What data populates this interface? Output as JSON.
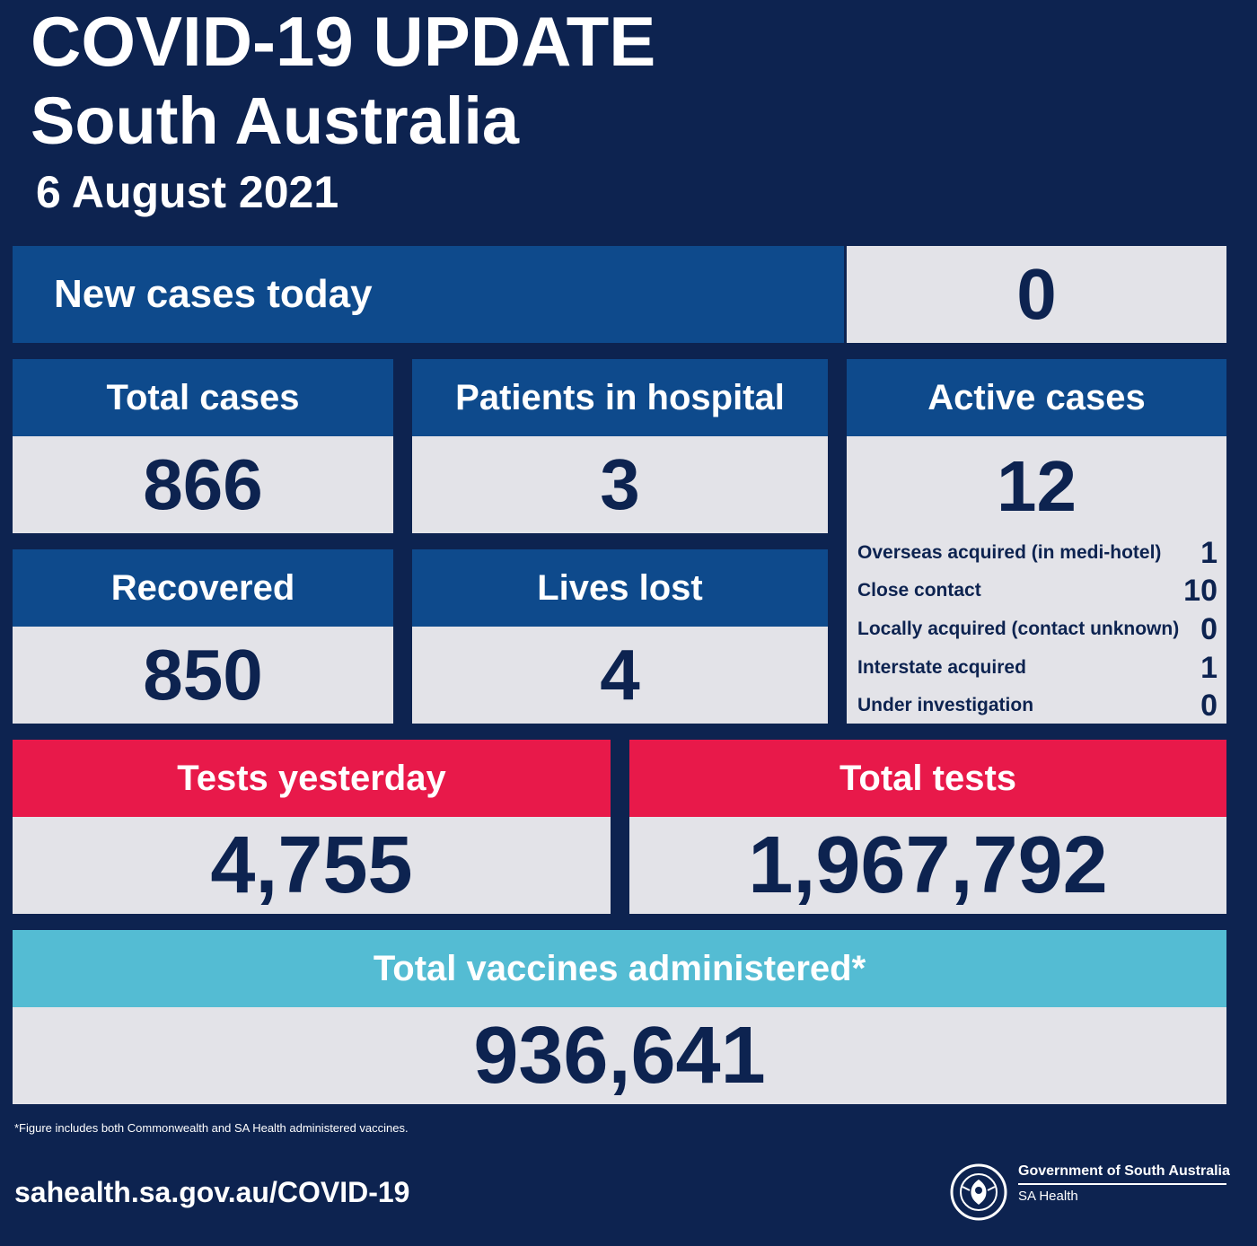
{
  "header": {
    "title": "COVID-19 UPDATE",
    "subtitle": "South Australia",
    "date": "6 August 2021"
  },
  "new_cases": {
    "label": "New cases today",
    "value": "0"
  },
  "total_cases": {
    "label": "Total cases",
    "value": "866"
  },
  "hospital": {
    "label": "Patients in hospital",
    "value": "3"
  },
  "active": {
    "label": "Active cases",
    "value": "12",
    "breakdown": [
      {
        "label": "Overseas acquired (in medi-hotel)",
        "value": "1"
      },
      {
        "label": "Close contact",
        "value": "10"
      },
      {
        "label": "Locally acquired (contact unknown)",
        "value": "0"
      },
      {
        "label": "Interstate acquired",
        "value": "1"
      },
      {
        "label": "Under investigation",
        "value": "0"
      }
    ]
  },
  "recovered": {
    "label": "Recovered",
    "value": "850"
  },
  "lives_lost": {
    "label": "Lives lost",
    "value": "4"
  },
  "tests_yesterday": {
    "label": "Tests yesterday",
    "value": "4,755"
  },
  "total_tests": {
    "label": "Total tests",
    "value": "1,967,792"
  },
  "vaccines": {
    "label": "Total vaccines administered*",
    "value": "936,641"
  },
  "footer": {
    "footnote": "*Figure includes both Commonwealth and SA Health administered vaccines.",
    "url": "sahealth.sa.gov.au/COVID-19",
    "gov_name": "Government of South Australia",
    "dept": "SA Health"
  },
  "colors": {
    "background": "#0d2350",
    "header_blue": "#0e4a8c",
    "value_grey": "#e3e3e8",
    "tests_pink": "#e8194a",
    "vaccine_teal": "#54bcd3"
  }
}
